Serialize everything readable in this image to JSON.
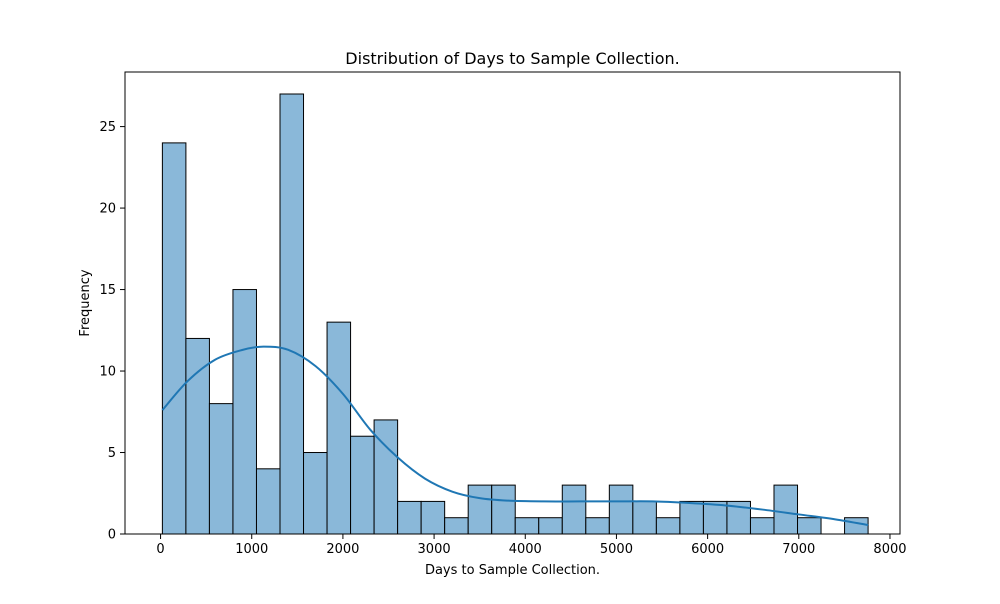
{
  "chart_data": {
    "type": "bar",
    "subtype": "histogram-with-kde",
    "title": "Distribution of Days to Sample Collection.",
    "xlabel": "Days to Sample Collection.",
    "ylabel": "Frequency",
    "xlim": [
      -390,
      8110
    ],
    "ylim": [
      0,
      28.35
    ],
    "x_ticks": [
      0,
      1000,
      2000,
      3000,
      4000,
      5000,
      6000,
      7000,
      8000
    ],
    "y_ticks": [
      0,
      5,
      10,
      15,
      20,
      25
    ],
    "bin_start": 20,
    "bin_width": 258,
    "counts": [
      24,
      12,
      8,
      15,
      4,
      27,
      5,
      13,
      6,
      7,
      2,
      2,
      1,
      3,
      3,
      1,
      1,
      3,
      1,
      3,
      2,
      1,
      2,
      2,
      2,
      1,
      3,
      1,
      0,
      1
    ],
    "kde": {
      "x": [
        20,
        300,
        600,
        900,
        1130,
        1400,
        1700,
        2000,
        2300,
        2600,
        2900,
        3200,
        3500,
        3800,
        4200,
        4600,
        5000,
        5400,
        5800,
        6200,
        6600,
        7000,
        7400,
        7760
      ],
      "y": [
        7.6,
        9.4,
        10.7,
        11.3,
        11.5,
        11.3,
        10.3,
        8.6,
        6.4,
        4.7,
        3.4,
        2.6,
        2.2,
        2.05,
        2.0,
        2.0,
        2.0,
        2.0,
        1.9,
        1.75,
        1.5,
        1.2,
        0.9,
        0.55
      ]
    },
    "bar_color": "#8ab8d9",
    "bar_edge_color": "#000000",
    "kde_color": "#1f77b4",
    "grid": false,
    "legend": "none"
  }
}
